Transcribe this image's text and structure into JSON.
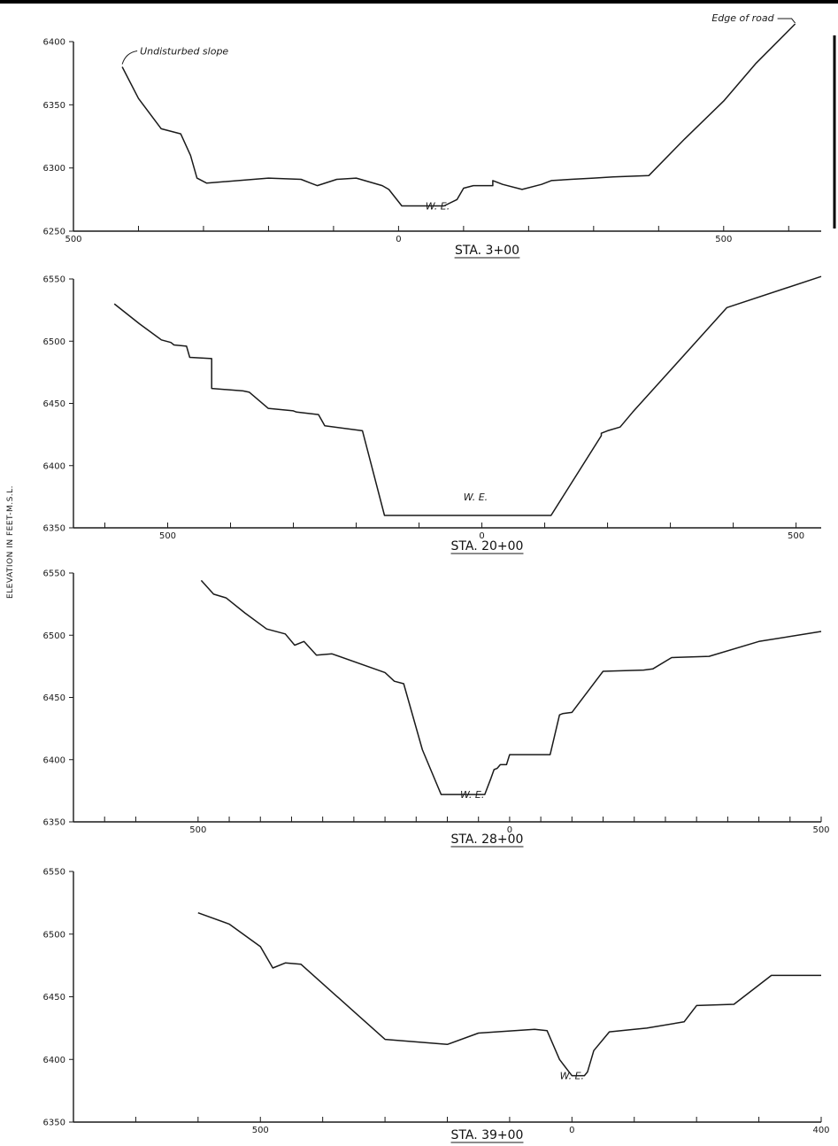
{
  "y_axis_label": "ELEVATION IN FEET-M.S.L.",
  "colors": {
    "ink": "#1a1a1a",
    "background": "#ffffff"
  },
  "chart_data": [
    {
      "type": "line",
      "title": "STA. 3+00",
      "ylim": [
        6250,
        6400
      ],
      "yticks": [
        6250,
        6300,
        6350,
        6400
      ],
      "xlim": [
        -500,
        650
      ],
      "xtick_labels": [
        {
          "x": -500,
          "label": "500"
        },
        {
          "x": 0,
          "label": "0"
        },
        {
          "x": 500,
          "label": "500"
        }
      ],
      "minor_xticks": [
        -400,
        -300,
        -200,
        -100,
        100,
        200,
        300,
        400,
        600
      ],
      "x": [
        -425,
        -400,
        -365,
        -335,
        -320,
        -310,
        -295,
        -200,
        -150,
        -135,
        -125,
        -95,
        -65,
        -25,
        -15,
        5,
        35,
        70,
        90,
        100,
        115,
        135,
        145,
        145,
        160,
        190,
        220,
        235,
        265,
        300,
        330,
        385,
        440,
        500,
        550,
        610
      ],
      "y": [
        6380,
        6355,
        6331,
        6327,
        6310,
        6292,
        6288,
        6292,
        6291,
        6288,
        6286,
        6291,
        6292,
        6286,
        6283,
        6270,
        6270,
        6270,
        6275,
        6284,
        6286,
        6286,
        6286,
        6290,
        6287,
        6283,
        6287,
        6290,
        6291,
        6292,
        6293,
        6294,
        6323,
        6353,
        6383,
        6414
      ],
      "annotations": [
        {
          "text": "Undisturbed slope",
          "x": -425,
          "y": 6380
        },
        {
          "text": "W. E.",
          "x": 60,
          "y": 6270
        },
        {
          "text": "Edge of road",
          "x": 610,
          "y": 6414
        }
      ]
    },
    {
      "type": "line",
      "title": "STA. 20+00",
      "ylim": [
        6350,
        6550
      ],
      "yticks": [
        6350,
        6400,
        6450,
        6500,
        6550
      ],
      "xlim": [
        -650,
        540
      ],
      "xtick_labels": [
        {
          "x": -500,
          "label": "500"
        },
        {
          "x": 0,
          "label": "0"
        },
        {
          "x": 500,
          "label": "500"
        }
      ],
      "minor_xticks": [
        -600,
        -400,
        -300,
        -200,
        -100,
        100,
        200,
        300,
        400
      ],
      "x": [
        -585,
        -545,
        -510,
        -495,
        -490,
        -470,
        -465,
        -430,
        -430,
        -380,
        -370,
        -340,
        -300,
        -295,
        -260,
        -250,
        -190,
        -155,
        -90,
        -75,
        -40,
        30,
        60,
        80,
        100,
        110,
        190,
        190,
        200,
        220,
        240,
        390,
        540
      ],
      "y": [
        6530,
        6514,
        6501,
        6499,
        6497,
        6496,
        6487,
        6486,
        6462,
        6460,
        6459,
        6446,
        6444,
        6443,
        6441,
        6432,
        6428,
        6360,
        6360,
        6360,
        6360,
        6360,
        6360,
        6360,
        6360,
        6360,
        6424,
        6426,
        6428,
        6431,
        6443,
        6527,
        6552
      ],
      "annotations": [
        {
          "text": "W. E.",
          "x": -10,
          "y": 6375
        }
      ]
    },
    {
      "type": "line",
      "title": "STA. 28+00",
      "ylim": [
        6350,
        6550
      ],
      "yticks": [
        6350,
        6400,
        6450,
        6500,
        6550
      ],
      "xlim": [
        -700,
        500
      ],
      "xtick_labels": [
        {
          "x": -500,
          "label": "500"
        },
        {
          "x": 0,
          "label": "0"
        },
        {
          "x": 500,
          "label": "500"
        }
      ],
      "minor_xticks": [
        -650,
        -600,
        -450,
        -400,
        -350,
        -300,
        -250,
        -200,
        -150,
        -100,
        -50,
        50,
        100,
        150,
        200,
        250,
        300,
        350,
        400,
        450
      ],
      "x": [
        -495,
        -475,
        -455,
        -425,
        -390,
        -360,
        -345,
        -330,
        -310,
        -285,
        -200,
        -185,
        -170,
        -140,
        -110,
        -60,
        -40,
        -30,
        -25,
        -20,
        -15,
        -5,
        0,
        25,
        65,
        80,
        85,
        100,
        150,
        215,
        230,
        260,
        320,
        400,
        500
      ],
      "y": [
        6544,
        6533,
        6530,
        6518,
        6505,
        6501,
        6492,
        6495,
        6484,
        6485,
        6470,
        6463,
        6461,
        6408,
        6372,
        6372,
        6372,
        6385,
        6392,
        6393,
        6396,
        6396,
        6404,
        6404,
        6404,
        6436,
        6437,
        6438,
        6471,
        6472,
        6473,
        6482,
        6483,
        6495,
        6503
      ],
      "annotations": [
        {
          "text": "W. E.",
          "x": -60,
          "y": 6372
        }
      ]
    },
    {
      "type": "line",
      "title": "STA. 39+00",
      "ylim": [
        6350,
        6550
      ],
      "yticks": [
        6350,
        6400,
        6450,
        6500,
        6550
      ],
      "xlim": [
        -800,
        400
      ],
      "xtick_labels": [
        {
          "x": -500,
          "label": "500"
        },
        {
          "x": 0,
          "label": "0"
        },
        {
          "x": 400,
          "label": "400"
        }
      ],
      "minor_xticks": [
        -700,
        -600,
        -400,
        -300,
        -200,
        -100,
        100,
        200,
        300
      ],
      "x": [
        -600,
        -550,
        -500,
        -480,
        -460,
        -435,
        -300,
        -200,
        -150,
        -60,
        -40,
        -20,
        0,
        10,
        20,
        25,
        35,
        60,
        100,
        120,
        180,
        200,
        260,
        320,
        400
      ],
      "y": [
        6517,
        6508,
        6490,
        6473,
        6477,
        6476,
        6416,
        6412,
        6421,
        6424,
        6423,
        6400,
        6387,
        6387,
        6387,
        6390,
        6407,
        6422,
        6424,
        6425,
        6430,
        6443,
        6444,
        6467,
        6467
      ],
      "annotations": [
        {
          "text": "W. E.",
          "x": 0,
          "y": 6387
        }
      ]
    }
  ]
}
